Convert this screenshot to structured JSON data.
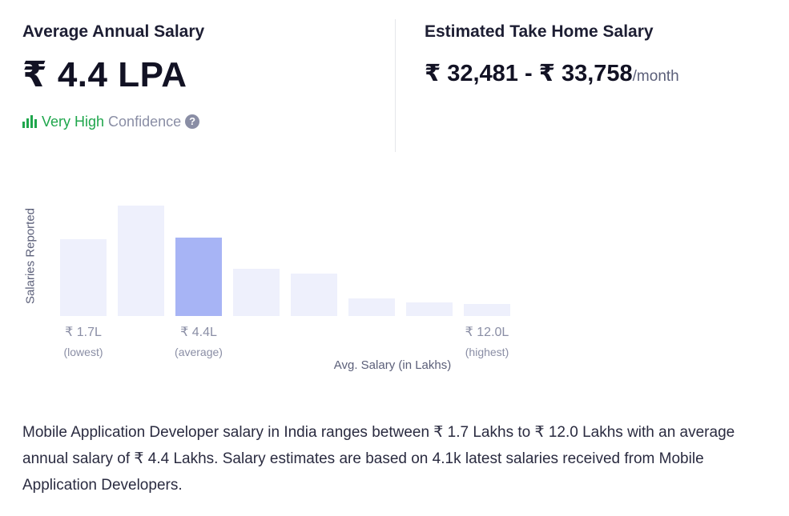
{
  "average": {
    "title": "Average Annual Salary",
    "value": "₹ 4.4 LPA",
    "confidence_level": "Very High",
    "confidence_word": "Confidence",
    "help_icon": "?"
  },
  "take_home": {
    "title": "Estimated Take Home Salary",
    "range": "₹ 32,481 - ₹ 33,758",
    "unit": "/month"
  },
  "chart_data": {
    "type": "bar",
    "ylabel": "Salaries Reported",
    "xlabel": "Avg. Salary (in Lakhs)",
    "values": [
      5.2,
      7.5,
      5.3,
      3.2,
      2.9,
      1.2,
      0.9,
      0.8
    ],
    "highlight_index": 2,
    "colors": {
      "bar": "#eef0fc",
      "highlight": "#a7b4f5"
    },
    "tick_labels": [
      {
        "bar_index": 0,
        "value": "₹ 1.7L",
        "sub": "(lowest)"
      },
      {
        "bar_index": 2,
        "value": "₹ 4.4L",
        "sub": "(average)"
      },
      {
        "bar_index": 7,
        "value": "₹ 12.0L",
        "sub": "(highest)"
      }
    ]
  },
  "description": "Mobile Application Developer salary in India ranges between ₹ 1.7 Lakhs to ₹ 12.0 Lakhs with an average annual salary of ₹ 4.4 Lakhs. Salary estimates are based on 4.1k latest salaries received from Mobile Application Developers."
}
